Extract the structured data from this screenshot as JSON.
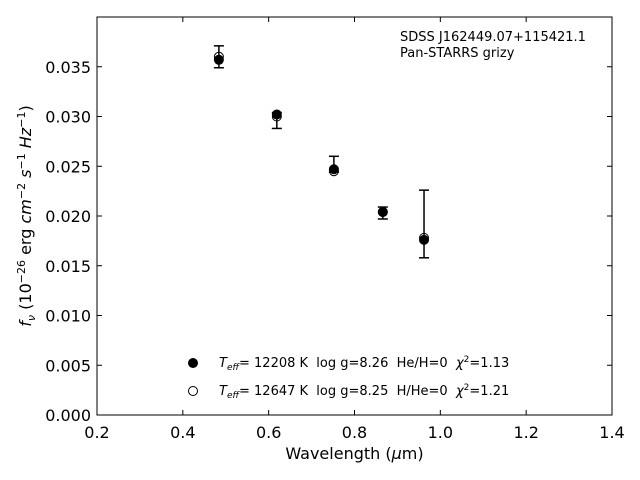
{
  "chart_data": {
    "type": "scatter",
    "annotation": [
      "SDSS J162449.07+115421.1",
      "Pan-STARRS grizy"
    ],
    "xlabel": "Wavelength (μm)",
    "ylabel": "f_ν (10^-26 erg cm^-2 s^-1 Hz^-1)",
    "xlim": [
      0.2,
      1.4
    ],
    "ylim": [
      0.0,
      0.04
    ],
    "xticks": [
      "0.2",
      "0.4",
      "0.6",
      "0.8",
      "1.0",
      "1.2",
      "1.4"
    ],
    "yticks": [
      "0.000",
      "0.005",
      "0.010",
      "0.015",
      "0.020",
      "0.025",
      "0.030",
      "0.035"
    ],
    "grid": false,
    "legend_position": "bottom-center",
    "observed": {
      "x": [
        0.484,
        0.619,
        0.752,
        0.866,
        0.962
      ],
      "y": [
        0.036,
        0.0296,
        0.0252,
        0.0203,
        0.0192
      ],
      "yerr": [
        0.0011,
        0.0008,
        0.0008,
        0.0006,
        0.0034
      ]
    },
    "series": [
      {
        "name": "T_eff= 12208 K  log g=8.26  He/H=0  χ²=1.13",
        "marker": "filled-circle",
        "x": [
          0.484,
          0.619,
          0.752,
          0.866,
          0.962
        ],
        "y": [
          0.0357,
          0.0302,
          0.0247,
          0.0204,
          0.0176
        ]
      },
      {
        "name": "T_eff= 12647 K  log g=8.25  H/He=0  χ²=1.21",
        "marker": "open-circle",
        "x": [
          0.484,
          0.619,
          0.752,
          0.866,
          0.962
        ],
        "y": [
          0.036,
          0.03,
          0.0245,
          0.0204,
          0.0178
        ]
      }
    ]
  },
  "legend": {
    "items": [
      {
        "teff_sym": "T",
        "teff_sub": "eff",
        "text": "= 12208 K  log g=8.26  He/H=0  ",
        "chi": "χ",
        "chi_sup": "2",
        "chi_val": "=1.13"
      },
      {
        "teff_sym": "T",
        "teff_sub": "eff",
        "text": "= 12647 K  log g=8.25  H/He=0  ",
        "chi": "χ",
        "chi_sup": "2",
        "chi_val": "=1.21"
      }
    ]
  },
  "axis_labels": {
    "x_text": "Wavelength (",
    "x_mu": "μ",
    "x_unit": "m)",
    "y_f": "f",
    "y_nu": "ν",
    "y_open": " (10",
    "y_exp26": "−26",
    "y_erg": " erg ",
    "y_cm": "cm",
    "y_exp2": "−2",
    "y_s": " s",
    "y_exp1": "−1",
    "y_hz": " Hz",
    "y_exp1b": "−1",
    "y_close": ")"
  }
}
